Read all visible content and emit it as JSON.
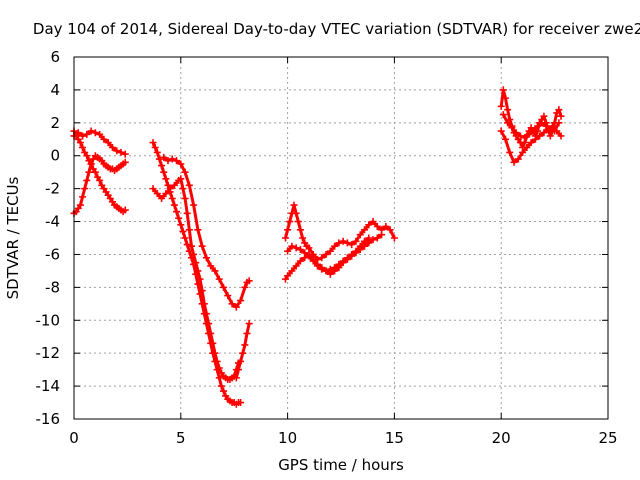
{
  "chart_data": {
    "type": "scatter",
    "title": "Day 104 of 2014, Sidereal Day-to-day VTEC variation (SDTVAR) for receiver zwe2",
    "xlabel": "GPS time / hours",
    "ylabel": "SDTVAR / TECUs",
    "xlim": [
      0,
      25
    ],
    "ylim": [
      -16,
      6
    ],
    "xticks": [
      "0",
      "5",
      "10",
      "15",
      "20",
      "25"
    ],
    "yticks": [
      "6",
      "4",
      "2",
      "0",
      "-2",
      "-4",
      "-6",
      "-8",
      "-10",
      "-12",
      "-14",
      "-16"
    ],
    "grid": true,
    "marker": "plus",
    "color": "#ff0000",
    "series": [
      {
        "x": [
          0.0,
          0.1,
          0.2,
          0.3,
          0.4,
          0.5,
          0.6,
          0.7,
          0.8,
          0.9,
          1.0,
          1.1,
          1.2,
          1.3,
          1.4,
          1.5,
          1.6,
          1.7,
          1.8,
          1.9,
          2.0,
          2.1,
          2.2,
          2.3,
          2.4
        ],
        "y": [
          1.5,
          1.2,
          1.0,
          0.8,
          0.5,
          0.2,
          0.0,
          -0.3,
          -0.5,
          -0.8,
          -1.0,
          -1.3,
          -1.5,
          -1.8,
          -2.0,
          -2.2,
          -2.4,
          -2.6,
          -2.8,
          -3.0,
          -3.1,
          -3.2,
          -3.3,
          -3.4,
          -3.3
        ]
      },
      {
        "x": [
          0.0,
          0.1,
          0.2,
          0.3,
          0.4,
          0.5,
          0.6,
          0.7,
          0.8,
          0.9,
          1.0,
          1.1,
          1.2,
          1.3,
          1.4,
          1.5,
          1.6,
          1.7,
          1.8,
          1.9,
          2.0,
          2.1,
          2.2,
          2.3,
          2.4
        ],
        "y": [
          -3.5,
          -3.4,
          -3.2,
          -3.0,
          -2.5,
          -2.0,
          -1.5,
          -1.0,
          -0.5,
          -0.2,
          0.0,
          -0.1,
          -0.2,
          -0.3,
          -0.5,
          -0.6,
          -0.7,
          -0.8,
          -0.8,
          -0.9,
          -0.8,
          -0.7,
          -0.6,
          -0.5,
          -0.4
        ]
      },
      {
        "x": [
          0.0,
          0.2,
          0.4,
          0.6,
          0.8,
          1.0,
          1.2,
          1.4,
          1.6,
          1.8,
          2.0,
          2.2,
          2.4
        ],
        "y": [
          1.2,
          1.4,
          1.2,
          1.3,
          1.5,
          1.4,
          1.3,
          1.0,
          0.8,
          0.5,
          0.3,
          0.2,
          0.1
        ]
      },
      {
        "x": [
          3.7,
          3.8,
          3.9,
          4.0,
          4.1,
          4.2,
          4.3,
          4.4,
          4.5,
          4.6,
          4.7,
          4.8,
          4.9,
          5.0,
          5.1,
          5.2,
          5.3,
          5.4,
          5.5,
          5.6,
          5.7,
          5.8,
          5.9,
          6.0,
          6.1,
          6.2,
          6.3,
          6.4,
          6.5,
          6.6,
          6.7,
          6.8,
          6.9,
          7.0,
          7.1,
          7.2,
          7.3,
          7.4,
          7.5,
          7.6,
          7.7,
          7.8
        ],
        "y": [
          0.8,
          0.5,
          0.2,
          -0.2,
          -0.6,
          -1.0,
          -1.4,
          -1.8,
          -2.2,
          -2.6,
          -3.0,
          -3.4,
          -3.8,
          -4.2,
          -4.6,
          -5.0,
          -5.4,
          -5.8,
          -6.2,
          -6.6,
          -7.2,
          -7.8,
          -8.4,
          -9.0,
          -9.6,
          -10.2,
          -10.8,
          -11.4,
          -12.0,
          -12.5,
          -13.0,
          -13.5,
          -14.0,
          -14.3,
          -14.6,
          -14.8,
          -14.9,
          -15.0,
          -15.0,
          -15.1,
          -15.0,
          -15.0
        ]
      },
      {
        "x": [
          3.7,
          3.9,
          4.1,
          4.3,
          4.5,
          4.7,
          4.9,
          5.0,
          5.1,
          5.2,
          5.3,
          5.4,
          5.5,
          5.6,
          5.7,
          5.8,
          5.9,
          6.0,
          6.1,
          6.2,
          6.3,
          6.4,
          6.5,
          6.6,
          6.7,
          6.8,
          6.9,
          7.0,
          7.1,
          7.2,
          7.3,
          7.4,
          7.5,
          7.6,
          7.7
        ],
        "y": [
          -2.0,
          -2.3,
          -2.6,
          -2.3,
          -2.0,
          -1.8,
          -1.5,
          -1.4,
          -2.0,
          -2.6,
          -3.5,
          -4.5,
          -5.5,
          -6.0,
          -6.5,
          -7.0,
          -7.5,
          -8.2,
          -9.0,
          -9.6,
          -10.2,
          -10.8,
          -11.4,
          -12.0,
          -12.5,
          -12.9,
          -13.2,
          -13.4,
          -13.5,
          -13.6,
          -13.6,
          -13.5,
          -13.4,
          -13.0,
          -12.6
        ]
      },
      {
        "x": [
          4.2,
          4.4,
          4.6,
          4.8,
          5.0,
          5.2,
          5.4,
          5.6,
          5.8,
          6.0,
          6.2,
          6.4,
          6.6,
          6.8,
          7.0,
          7.2,
          7.4,
          7.6,
          7.8,
          8.0,
          8.1,
          8.2
        ],
        "y": [
          -0.1,
          -0.3,
          -0.2,
          -0.3,
          -0.5,
          -1.0,
          -1.8,
          -3.0,
          -4.5,
          -5.5,
          -6.2,
          -6.7,
          -7.0,
          -7.5,
          -8.0,
          -8.5,
          -9.0,
          -9.2,
          -8.8,
          -8.0,
          -7.7,
          -7.6
        ]
      },
      {
        "x": [
          7.6,
          7.7,
          7.8,
          7.9,
          8.0,
          8.1,
          8.2
        ],
        "y": [
          -13.5,
          -13.0,
          -12.5,
          -12.0,
          -11.5,
          -10.8,
          -10.2
        ]
      },
      {
        "x": [
          9.9,
          10.0,
          10.1,
          10.2,
          10.3,
          10.4,
          10.5,
          10.6,
          10.7,
          10.8,
          10.9,
          11.0,
          11.2,
          11.4,
          11.6,
          11.8,
          12.0,
          12.2,
          12.4,
          12.6,
          12.8,
          13.0,
          13.2,
          13.4,
          13.6,
          13.8,
          14.0,
          14.2,
          14.4,
          14.6,
          14.8,
          15.0
        ],
        "y": [
          -5.0,
          -4.5,
          -4.0,
          -3.5,
          -3.0,
          -3.5,
          -4.0,
          -4.5,
          -5.0,
          -5.3,
          -5.5,
          -5.6,
          -6.0,
          -6.3,
          -6.2,
          -6.0,
          -5.8,
          -5.5,
          -5.3,
          -5.2,
          -5.3,
          -5.4,
          -5.2,
          -4.8,
          -4.5,
          -4.2,
          -4.0,
          -4.3,
          -4.5,
          -4.3,
          -4.5,
          -5.0
        ]
      },
      {
        "x": [
          9.9,
          10.0,
          10.2,
          10.4,
          10.6,
          10.8,
          11.0,
          11.2,
          11.4,
          11.6,
          11.8,
          12.0,
          12.2,
          12.4,
          12.6,
          12.8,
          13.0,
          13.2,
          13.4,
          13.6,
          13.8,
          14.0,
          14.2,
          14.4
        ],
        "y": [
          -7.5,
          -7.3,
          -7.0,
          -6.7,
          -6.4,
          -6.2,
          -6.0,
          -6.3,
          -6.7,
          -6.9,
          -7.0,
          -6.9,
          -6.8,
          -6.6,
          -6.4,
          -6.3,
          -6.1,
          -5.9,
          -5.7,
          -5.5,
          -5.3,
          -5.1,
          -5.0,
          -4.8
        ]
      },
      {
        "x": [
          10.0,
          10.2,
          10.4,
          10.6,
          10.8,
          11.0,
          11.2,
          11.4,
          11.6,
          11.8,
          12.0,
          12.2,
          12.4,
          12.6,
          12.8,
          13.0,
          13.2,
          13.4,
          13.6,
          13.8
        ],
        "y": [
          -5.8,
          -5.5,
          -5.6,
          -5.7,
          -5.9,
          -6.1,
          -6.4,
          -6.6,
          -6.8,
          -7.0,
          -7.2,
          -7.0,
          -6.8,
          -6.5,
          -6.2,
          -6.0,
          -5.8,
          -5.5,
          -5.2,
          -5.0
        ]
      },
      {
        "x": [
          20.0,
          20.1,
          20.2,
          20.3,
          20.4,
          20.5,
          20.6,
          20.7,
          20.8,
          20.9,
          21.0,
          21.1,
          21.2,
          21.3,
          21.4,
          21.5,
          21.6,
          21.7,
          21.8,
          21.9,
          22.0,
          22.1,
          22.2,
          22.3,
          22.4,
          22.5,
          22.6,
          22.7,
          22.8
        ],
        "y": [
          3.0,
          4.0,
          3.5,
          2.8,
          2.2,
          1.8,
          1.4,
          1.2,
          1.0,
          0.8,
          0.5,
          0.8,
          1.2,
          1.5,
          1.7,
          1.5,
          1.2,
          1.5,
          2.0,
          2.2,
          2.4,
          2.0,
          1.6,
          1.2,
          1.5,
          2.0,
          2.6,
          2.8,
          2.4
        ]
      },
      {
        "x": [
          20.0,
          20.2,
          20.4,
          20.6,
          20.8,
          21.0,
          21.2,
          21.4,
          21.6,
          21.8,
          22.0,
          22.2,
          22.4,
          22.6,
          22.8
        ],
        "y": [
          1.5,
          1.0,
          0.2,
          -0.4,
          -0.2,
          0.2,
          0.5,
          0.8,
          1.0,
          1.2,
          1.4,
          1.6,
          1.8,
          1.5,
          1.2
        ]
      },
      {
        "x": [
          20.1,
          20.3,
          20.5,
          20.7,
          20.9,
          21.1,
          21.3,
          21.5,
          21.7,
          21.9,
          22.1,
          22.3,
          22.5,
          22.7
        ],
        "y": [
          2.5,
          2.0,
          1.7,
          1.4,
          1.2,
          1.1,
          1.3,
          1.5,
          1.8,
          2.0,
          1.8,
          1.6,
          1.5,
          2.0
        ]
      }
    ]
  }
}
